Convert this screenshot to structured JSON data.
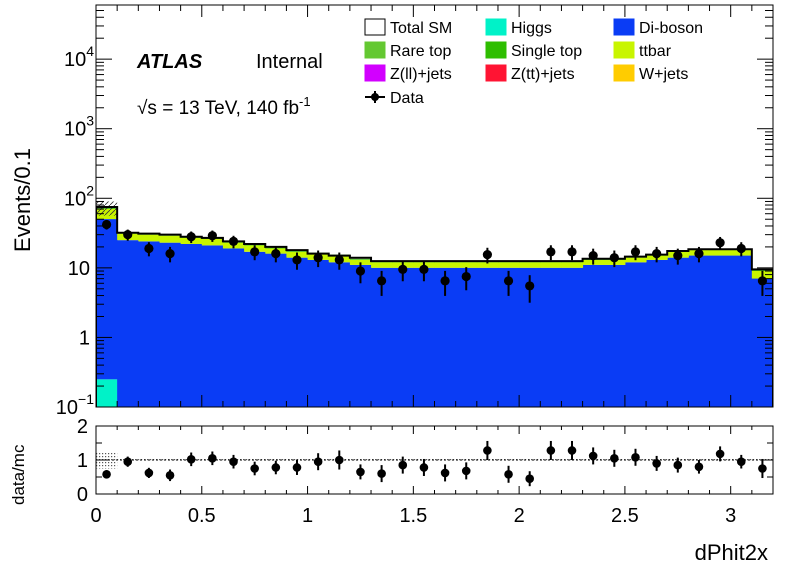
{
  "chart_data": [
    {
      "type": "bar",
      "stacked": true,
      "ylabel": "Events/0.1",
      "yscale": "log",
      "ylim": [
        0.1,
        60000
      ],
      "xlim": [
        0,
        3.2
      ],
      "yticks": [
        {
          "v": 0.1,
          "base": "10",
          "exp": "−1"
        },
        {
          "v": 1,
          "label": "1"
        },
        {
          "v": 10,
          "label": "10"
        },
        {
          "v": 100,
          "base": "10",
          "exp": "2"
        },
        {
          "v": 1000,
          "base": "10",
          "exp": "3"
        },
        {
          "v": 10000,
          "base": "10",
          "exp": "4"
        }
      ],
      "labels": {
        "atlas": "ATLAS",
        "internal": "Internal",
        "energy": "√s = 13 TeV, 140 fb",
        "energy_exp": "-1"
      },
      "bin_edges": [
        0,
        0.1,
        0.2,
        0.3,
        0.4,
        0.5,
        0.6,
        0.7,
        0.8,
        0.9,
        1.0,
        1.1,
        1.2,
        1.3,
        1.4,
        1.5,
        1.6,
        1.7,
        1.8,
        1.9,
        2.0,
        2.1,
        2.2,
        2.3,
        2.4,
        2.5,
        2.6,
        2.7,
        2.8,
        2.9,
        3.0,
        3.1,
        3.2
      ],
      "series": [
        {
          "name": "Higgs",
          "color": "#00f2c8",
          "values": [
            0.25,
            0.02,
            0.02,
            0.02,
            0.02,
            0.02,
            0.02,
            0.02,
            0.02,
            0.02,
            0.02,
            0.02,
            0.02,
            0.02,
            0.02,
            0.02,
            0.02,
            0.02,
            0.02,
            0.02,
            0.02,
            0.02,
            0.02,
            0.02,
            0.02,
            0.02,
            0.02,
            0.02,
            0.02,
            0.02,
            0.02,
            0.02
          ]
        },
        {
          "name": "Di-boson",
          "color": "#0a3cf5",
          "values": [
            50,
            25,
            24,
            23,
            22,
            21,
            19,
            17,
            16,
            14,
            13,
            12,
            11,
            10,
            10,
            10,
            10,
            10,
            10,
            10,
            10,
            10,
            10,
            11,
            11,
            12,
            13,
            14,
            15,
            15,
            15,
            7
          ]
        },
        {
          "name": "ttbar",
          "color": "#c8f500",
          "values": [
            20,
            6,
            6,
            6,
            5,
            5,
            4,
            4,
            3,
            3,
            3,
            3,
            2,
            2,
            2,
            2,
            2,
            2,
            2,
            2,
            2,
            2,
            2,
            2,
            2,
            2,
            2,
            3,
            3,
            3,
            3,
            2
          ]
        },
        {
          "name": "Single top",
          "color": "#2ebe00",
          "values": [
            2,
            0.6,
            0.6,
            0.6,
            0.5,
            0.5,
            0.5,
            0.4,
            0.4,
            0.4,
            0.3,
            0.3,
            0.3,
            0.3,
            0.3,
            0.3,
            0.3,
            0.3,
            0.3,
            0.3,
            0.3,
            0.3,
            0.3,
            0.3,
            0.3,
            0.3,
            0.3,
            0.3,
            0.3,
            0.3,
            0.3,
            0.2
          ]
        },
        {
          "name": "Rare top",
          "color": "#64c832",
          "values": [
            1,
            0.3,
            0.3,
            0.3,
            0.3,
            0.3,
            0.3,
            0.3,
            0.2,
            0.2,
            0.2,
            0.2,
            0.2,
            0.2,
            0.2,
            0.2,
            0.2,
            0.2,
            0.2,
            0.2,
            0.2,
            0.2,
            0.2,
            0.2,
            0.2,
            0.2,
            0.2,
            0.2,
            0.2,
            0.2,
            0.2,
            0.2
          ]
        }
      ],
      "total_sm": {
        "name": "Total SM",
        "values": [
          75,
          32,
          31,
          30,
          28,
          27,
          24,
          22,
          20,
          18,
          16,
          15,
          14,
          12.5,
          12.5,
          12.5,
          12.5,
          12.5,
          12.5,
          12.5,
          12.5,
          12.5,
          12.5,
          13.5,
          13.5,
          14.5,
          15.5,
          17.5,
          18.5,
          18.5,
          18.5,
          9.5
        ]
      },
      "data": {
        "name": "Data",
        "x": [
          0.05,
          0.15,
          0.25,
          0.35,
          0.45,
          0.55,
          0.65,
          0.75,
          0.85,
          0.95,
          1.05,
          1.15,
          1.25,
          1.35,
          1.45,
          1.55,
          1.65,
          1.75,
          1.85,
          1.95,
          2.05,
          2.15,
          2.25,
          2.35,
          2.45,
          2.55,
          2.65,
          2.75,
          2.85,
          2.95,
          3.05,
          3.15
        ],
        "y": [
          42,
          30,
          19,
          16,
          28,
          29,
          24,
          17,
          16,
          13,
          14,
          13,
          9,
          6.5,
          9.5,
          9.5,
          6.5,
          7.5,
          15.5,
          6.5,
          5.5,
          17,
          17,
          15,
          14,
          17,
          16,
          15,
          16,
          23,
          19,
          6.5
        ]
      },
      "legend": [
        {
          "name": "Total SM",
          "kind": "outline",
          "color": "#ffffff"
        },
        {
          "name": "Higgs",
          "kind": "fill",
          "color": "#00f2c8"
        },
        {
          "name": "Di-boson",
          "kind": "fill",
          "color": "#0a3cf5"
        },
        {
          "name": "Rare top",
          "kind": "fill",
          "color": "#64c832"
        },
        {
          "name": "Single top",
          "kind": "fill",
          "color": "#2ebe00"
        },
        {
          "name": "ttbar",
          "kind": "fill",
          "color": "#c8f500"
        },
        {
          "name": "Z(ll)+jets",
          "kind": "fill",
          "color": "#d200ff"
        },
        {
          "name": "Z(tt)+jets",
          "kind": "fill",
          "color": "#ff1433"
        },
        {
          "name": "W+jets",
          "kind": "fill",
          "color": "#ffcc00"
        },
        {
          "name": "Data",
          "kind": "marker",
          "color": "#000000"
        }
      ]
    },
    {
      "type": "scatter",
      "ylabel": "data/mc",
      "xlabel": "dPhit2x",
      "ylim": [
        0,
        2
      ],
      "xlim": [
        0,
        3.2
      ],
      "yticks": [
        "0",
        "1",
        "2"
      ],
      "xticks": [
        "0",
        "0.5",
        "1",
        "1.5",
        "2",
        "2.5",
        "3"
      ],
      "x": [
        0.05,
        0.15,
        0.25,
        0.35,
        0.45,
        0.55,
        0.65,
        0.75,
        0.85,
        0.95,
        1.05,
        1.15,
        1.25,
        1.35,
        1.45,
        1.55,
        1.65,
        1.75,
        1.85,
        1.95,
        2.05,
        2.15,
        2.25,
        2.35,
        2.45,
        2.55,
        2.65,
        2.75,
        2.85,
        2.95,
        3.05,
        3.15
      ],
      "y": [
        0.58,
        0.95,
        0.62,
        0.55,
        1.02,
        1.05,
        0.95,
        0.75,
        0.78,
        0.78,
        0.95,
        1.0,
        0.65,
        0.6,
        0.85,
        0.78,
        0.62,
        0.68,
        1.28,
        0.58,
        0.45,
        1.28,
        1.28,
        1.12,
        1.05,
        1.08,
        0.9,
        0.85,
        0.8,
        1.18,
        0.95,
        0.75
      ],
      "err": [
        0.12,
        0.15,
        0.15,
        0.17,
        0.2,
        0.2,
        0.2,
        0.2,
        0.2,
        0.22,
        0.25,
        0.28,
        0.22,
        0.25,
        0.25,
        0.25,
        0.25,
        0.25,
        0.28,
        0.25,
        0.22,
        0.28,
        0.28,
        0.25,
        0.25,
        0.25,
        0.22,
        0.22,
        0.2,
        0.22,
        0.2,
        0.28
      ]
    }
  ]
}
